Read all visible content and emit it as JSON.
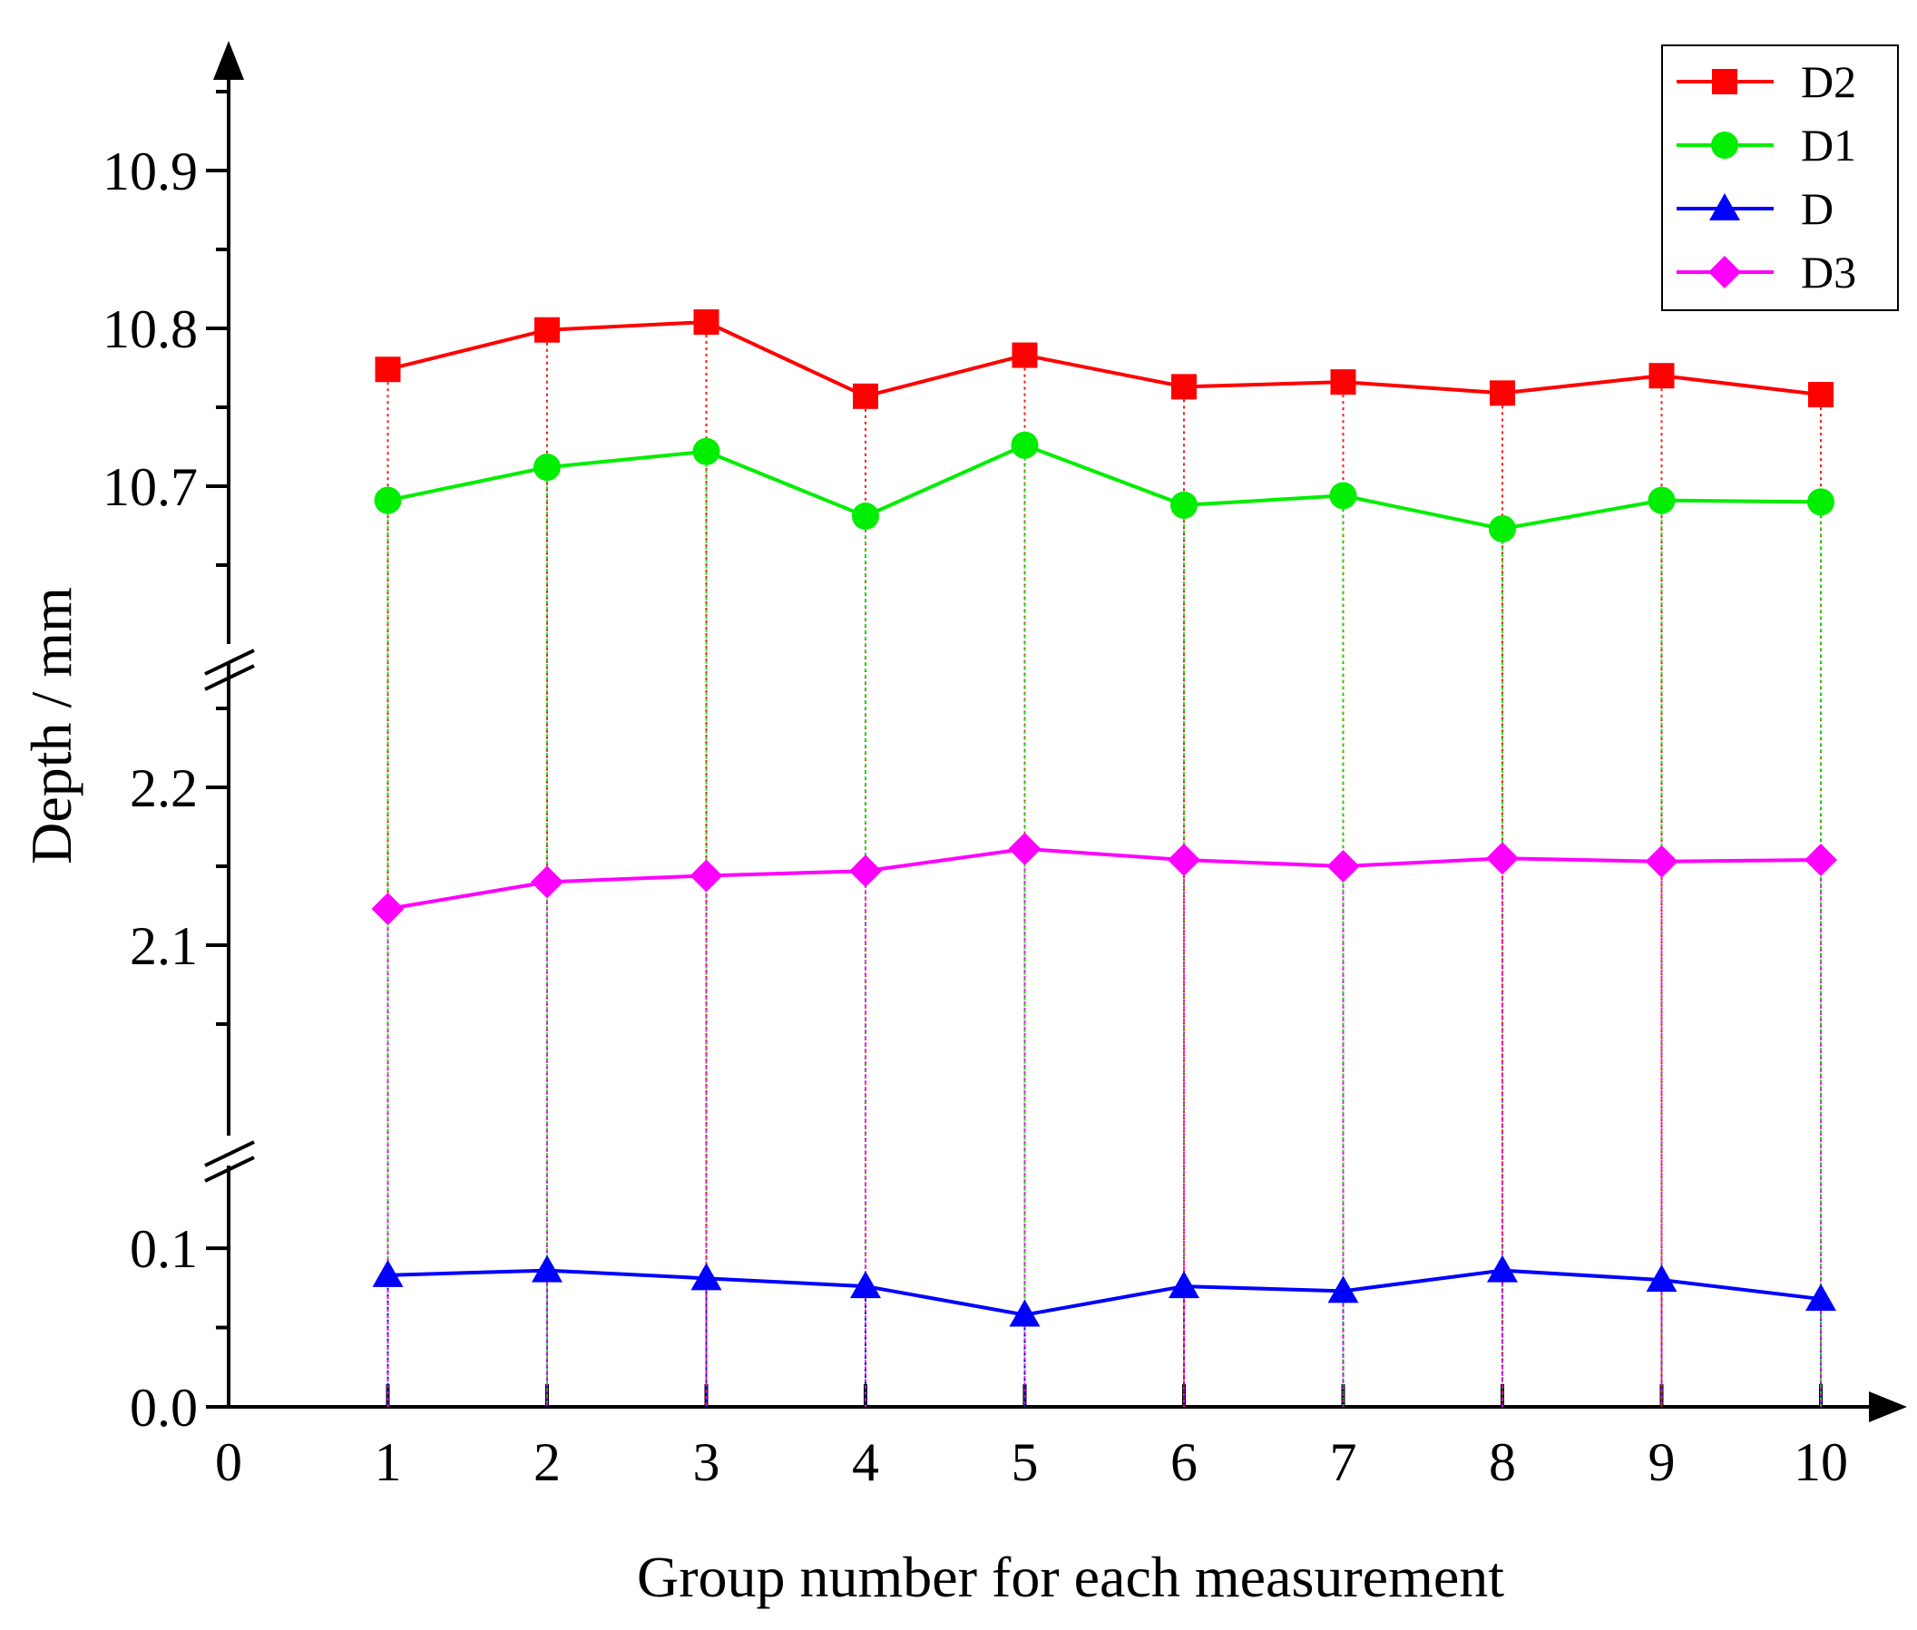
{
  "chart_data": {
    "type": "line",
    "title": "",
    "xlabel": "Group number for each measurement",
    "ylabel": "Depth / mm",
    "x": [
      1,
      2,
      3,
      4,
      5,
      6,
      7,
      8,
      9,
      10
    ],
    "xticks": [
      "0",
      "1",
      "2",
      "3",
      "4",
      "5",
      "6",
      "7",
      "8",
      "9",
      "10"
    ],
    "xlim": [
      0,
      10.5
    ],
    "y_segments": [
      {
        "range": [
          0.0,
          0.125
        ],
        "ticks": [
          "0.0",
          "0.1"
        ]
      },
      {
        "range": [
          2.0,
          2.3
        ],
        "ticks": [
          "2.1",
          "2.2"
        ]
      },
      {
        "range": [
          10.6,
          10.98
        ],
        "ticks": [
          "10.7",
          "10.8",
          "10.9"
        ]
      }
    ],
    "axis_breaks": true,
    "legend_position": "top-right",
    "series": [
      {
        "name": "D2",
        "color": "#ff0000",
        "marker": "square",
        "values": [
          10.774,
          10.799,
          10.804,
          10.757,
          10.783,
          10.763,
          10.766,
          10.759,
          10.77,
          10.758
        ]
      },
      {
        "name": "D1",
        "color": "#00ee00",
        "marker": "circle",
        "values": [
          10.691,
          10.712,
          10.722,
          10.681,
          10.726,
          10.688,
          10.694,
          10.673,
          10.691,
          10.69
        ]
      },
      {
        "name": "D",
        "color": "#0000ff",
        "marker": "triangle",
        "values": [
          0.083,
          0.086,
          0.081,
          0.076,
          0.058,
          0.076,
          0.073,
          0.086,
          0.08,
          0.068
        ]
      },
      {
        "name": "D3",
        "color": "#ff00ff",
        "marker": "diamond",
        "values": [
          2.123,
          2.14,
          2.144,
          2.147,
          2.161,
          2.154,
          2.15,
          2.155,
          2.153,
          2.154
        ]
      }
    ]
  }
}
